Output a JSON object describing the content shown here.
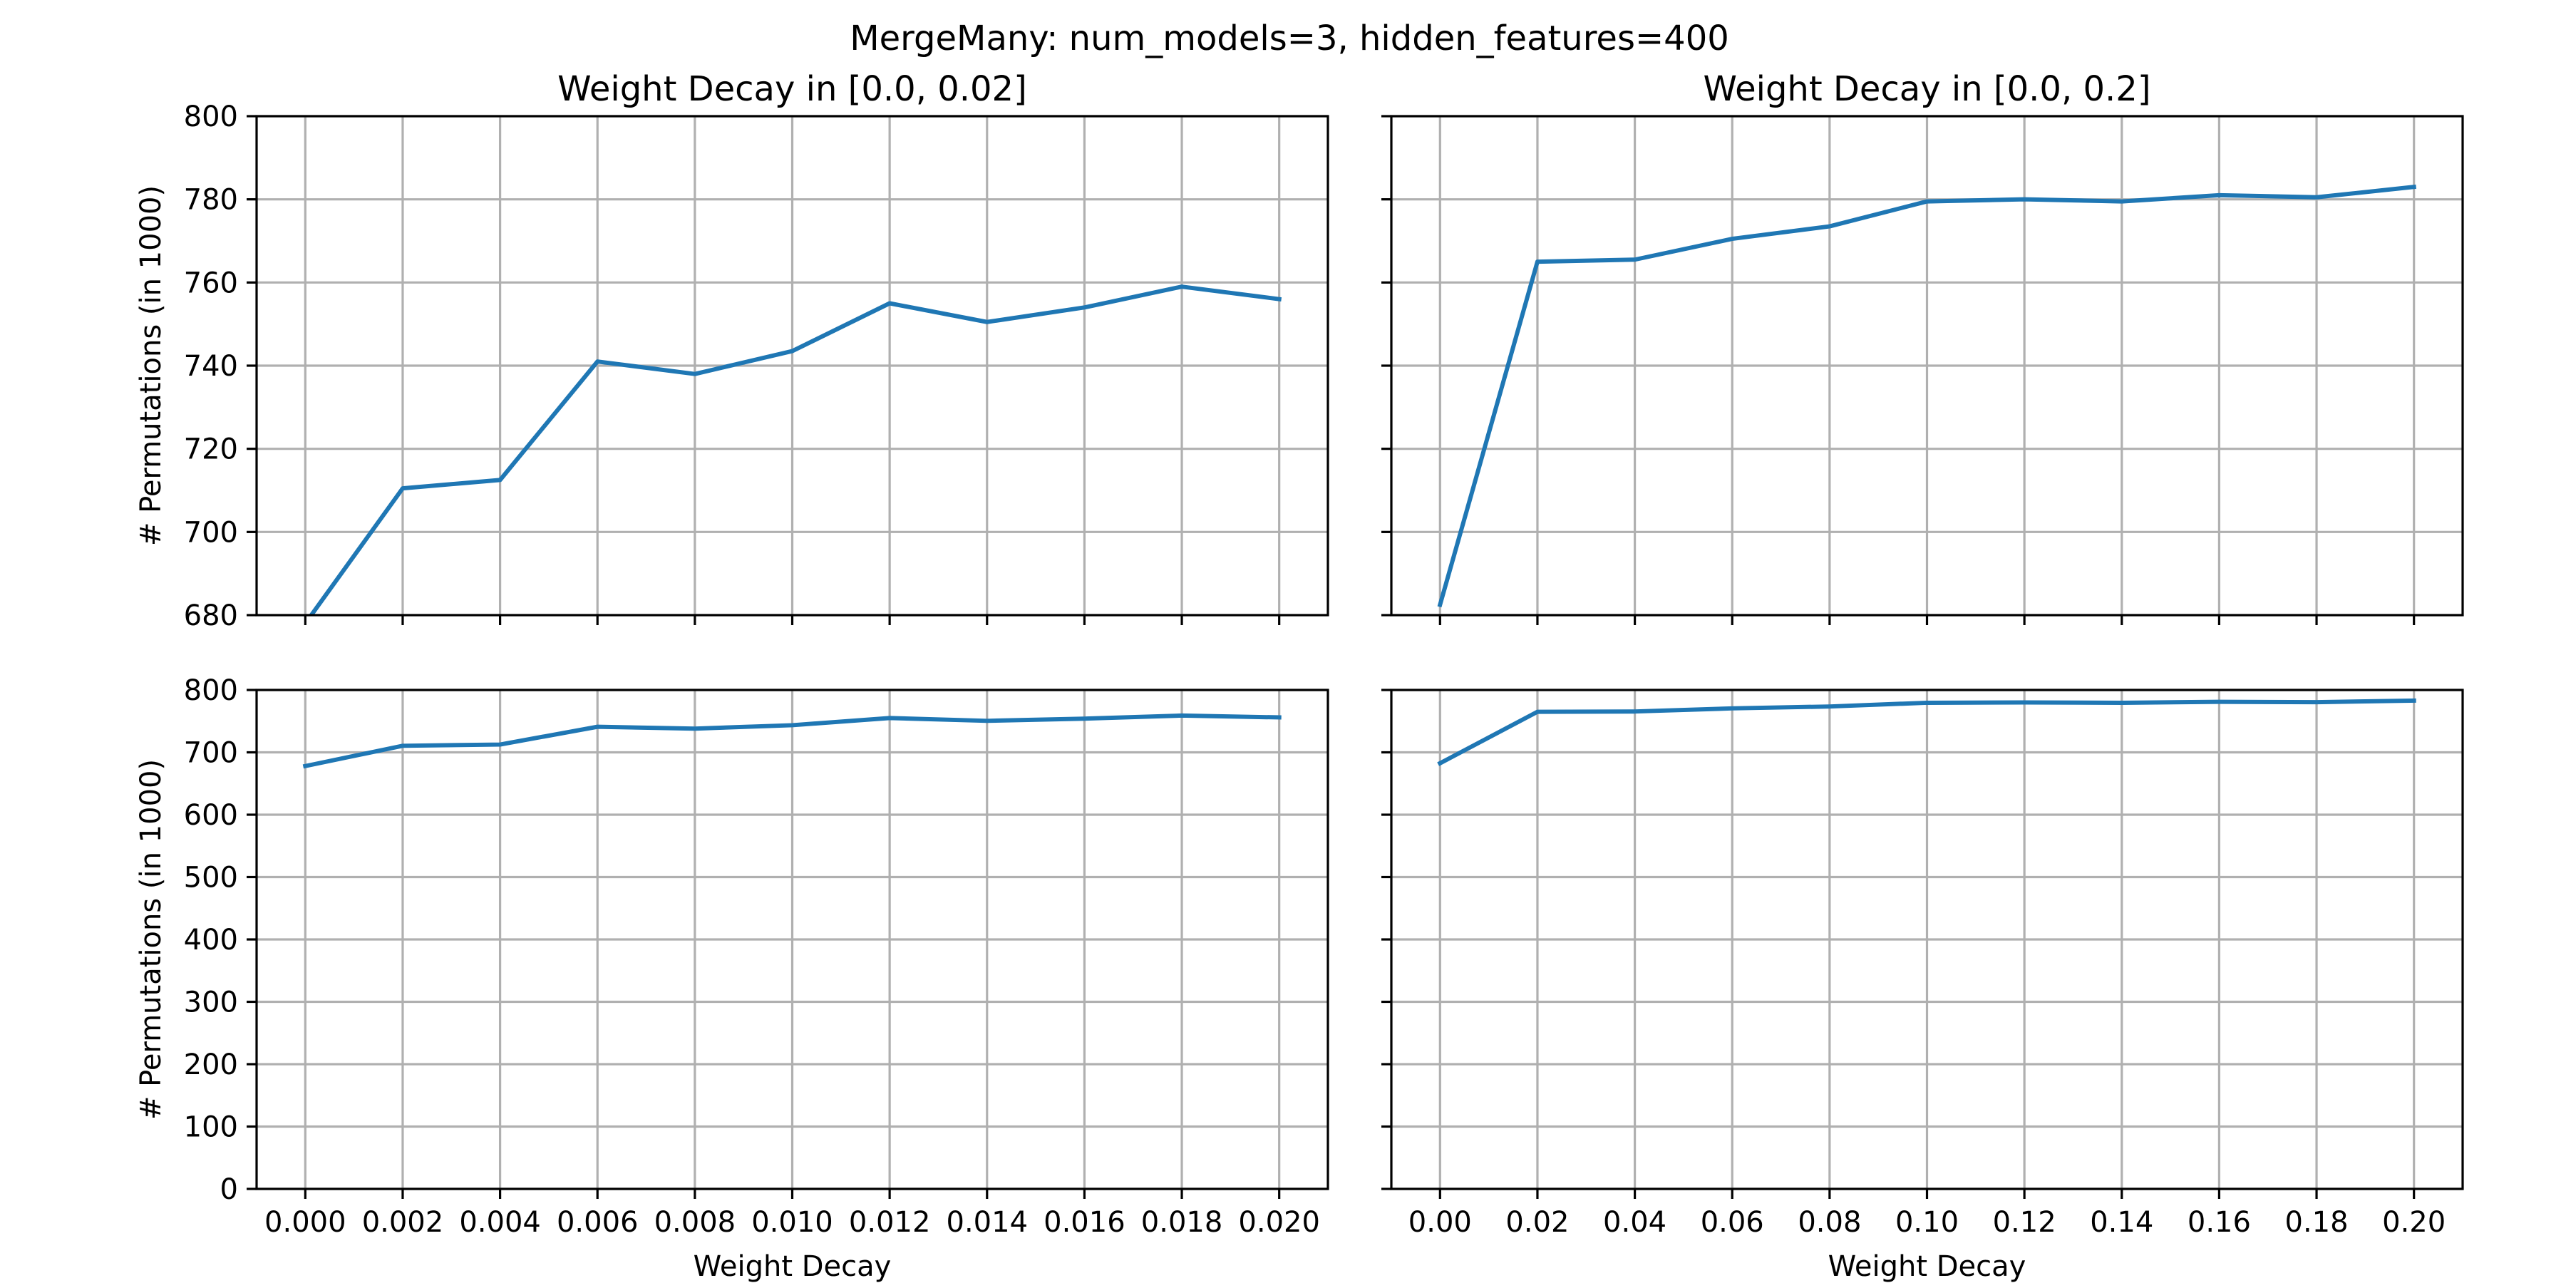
{
  "suptitle": "MergeMany: num_models=3, hidden_features=400",
  "colors": {
    "line": "#1f77b4",
    "grid": "#b0b0b0"
  },
  "chart_data": [
    {
      "id": "top-left",
      "type": "line",
      "title": "Weight Decay in [0.0, 0.02]",
      "xlabel": "",
      "ylabel": "# Permutations (in 1000)",
      "xlim": [
        -0.001,
        0.021
      ],
      "ylim": [
        680,
        800
      ],
      "xticks": [
        0.0,
        0.002,
        0.004,
        0.006,
        0.008,
        0.01,
        0.012,
        0.014,
        0.016,
        0.018,
        0.02
      ],
      "xtick_labels": [],
      "yticks": [
        680,
        700,
        720,
        740,
        760,
        780,
        800
      ],
      "ytick_labels": [
        "680",
        "700",
        "720",
        "740",
        "760",
        "780",
        "800"
      ],
      "grid": true,
      "x": [
        0.0,
        0.002,
        0.004,
        0.006,
        0.008,
        0.01,
        0.012,
        0.014,
        0.016,
        0.018,
        0.02
      ],
      "y": [
        678,
        710.5,
        712.5,
        741,
        738,
        743.5,
        755,
        750.5,
        754,
        759,
        756
      ]
    },
    {
      "id": "top-right",
      "type": "line",
      "title": "Weight Decay in [0.0, 0.2]",
      "xlabel": "",
      "ylabel": "",
      "xlim": [
        -0.01,
        0.21
      ],
      "ylim": [
        680,
        800
      ],
      "xticks": [
        0.0,
        0.02,
        0.04,
        0.06,
        0.08,
        0.1,
        0.12,
        0.14,
        0.16,
        0.18,
        0.2
      ],
      "xtick_labels": [],
      "yticks": [
        680,
        700,
        720,
        740,
        760,
        780,
        800
      ],
      "ytick_labels": [],
      "grid": true,
      "x": [
        0.0,
        0.02,
        0.04,
        0.06,
        0.08,
        0.1,
        0.12,
        0.14,
        0.16,
        0.18,
        0.2
      ],
      "y": [
        682.5,
        765,
        765.5,
        770.5,
        773.5,
        779.5,
        780,
        779.5,
        781,
        780.5,
        783
      ]
    },
    {
      "id": "bottom-left",
      "type": "line",
      "title": "",
      "xlabel": "Weight Decay",
      "ylabel": "# Permutations (in 1000)",
      "xlim": [
        -0.001,
        0.021
      ],
      "ylim": [
        0,
        800
      ],
      "xticks": [
        0.0,
        0.002,
        0.004,
        0.006,
        0.008,
        0.01,
        0.012,
        0.014,
        0.016,
        0.018,
        0.02
      ],
      "xtick_labels": [
        "0.000",
        "0.002",
        "0.004",
        "0.006",
        "0.008",
        "0.010",
        "0.012",
        "0.014",
        "0.016",
        "0.018",
        "0.020"
      ],
      "yticks": [
        0,
        100,
        200,
        300,
        400,
        500,
        600,
        700,
        800
      ],
      "ytick_labels": [
        "0",
        "100",
        "200",
        "300",
        "400",
        "500",
        "600",
        "700",
        "800"
      ],
      "grid": true,
      "x": [
        0.0,
        0.002,
        0.004,
        0.006,
        0.008,
        0.01,
        0.012,
        0.014,
        0.016,
        0.018,
        0.02
      ],
      "y": [
        678,
        710.5,
        712.5,
        741,
        738,
        743.5,
        755,
        750.5,
        754,
        759,
        756
      ]
    },
    {
      "id": "bottom-right",
      "type": "line",
      "title": "",
      "xlabel": "Weight Decay",
      "ylabel": "",
      "xlim": [
        -0.01,
        0.21
      ],
      "ylim": [
        0,
        800
      ],
      "xticks": [
        0.0,
        0.02,
        0.04,
        0.06,
        0.08,
        0.1,
        0.12,
        0.14,
        0.16,
        0.18,
        0.2
      ],
      "xtick_labels": [
        "0.00",
        "0.02",
        "0.04",
        "0.06",
        "0.08",
        "0.10",
        "0.12",
        "0.14",
        "0.16",
        "0.18",
        "0.20"
      ],
      "yticks": [
        0,
        100,
        200,
        300,
        400,
        500,
        600,
        700,
        800
      ],
      "ytick_labels": [],
      "grid": true,
      "x": [
        0.0,
        0.02,
        0.04,
        0.06,
        0.08,
        0.1,
        0.12,
        0.14,
        0.16,
        0.18,
        0.2
      ],
      "y": [
        682.5,
        765,
        765.5,
        770.5,
        773.5,
        779.5,
        780,
        779.5,
        781,
        780.5,
        783
      ]
    }
  ]
}
